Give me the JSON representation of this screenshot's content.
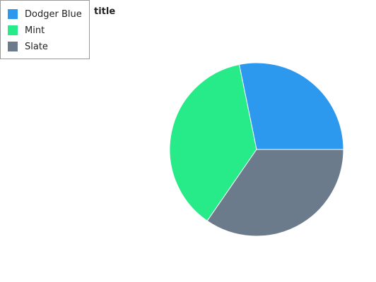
{
  "chart_data": {
    "type": "pie",
    "title": "title",
    "categories": [
      "Dodger Blue",
      "Mint",
      "Slate"
    ],
    "values": [
      28.2,
      37.2,
      34.6
    ],
    "colors": [
      "#2c98ee",
      "#27eb88",
      "#6b7b8c"
    ],
    "legend_position": "top-left"
  }
}
